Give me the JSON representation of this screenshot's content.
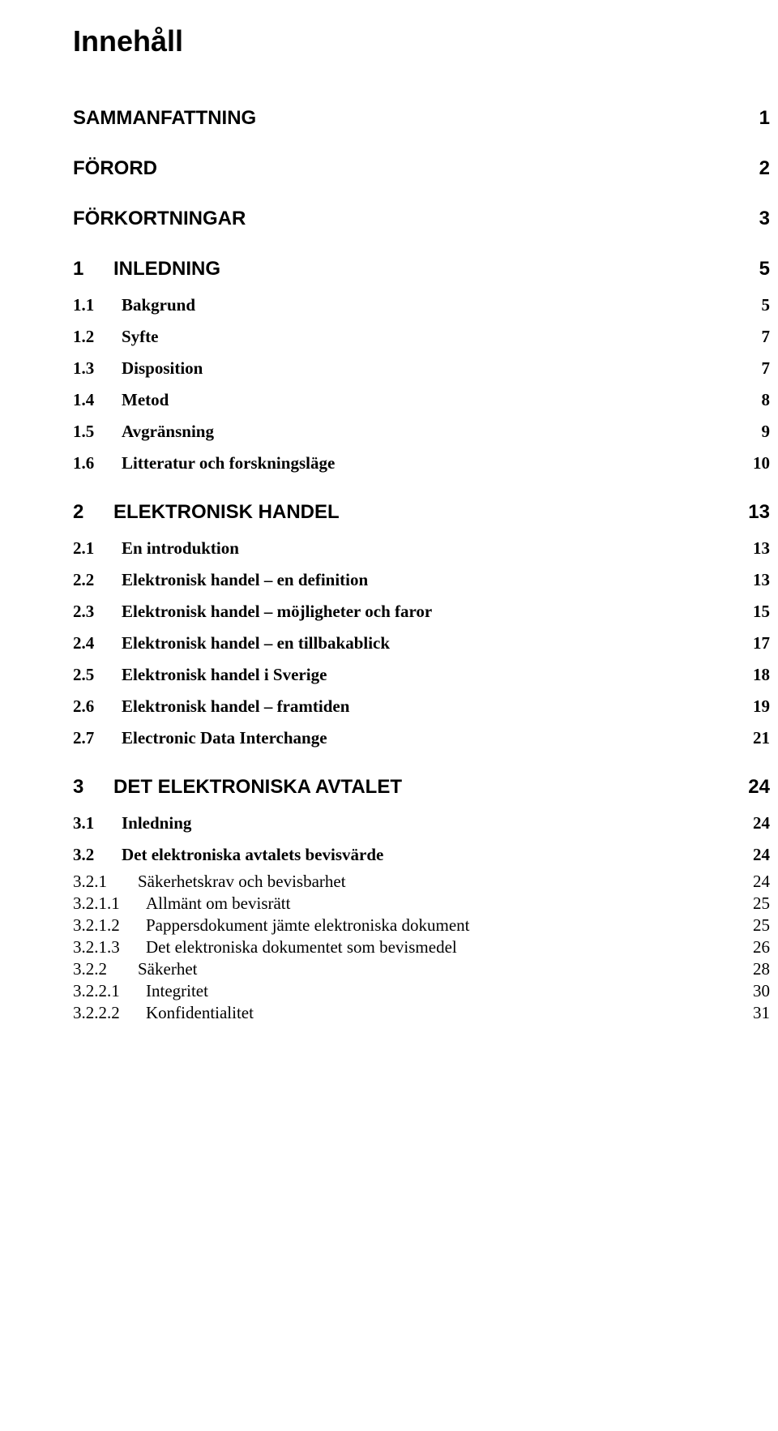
{
  "title": "Innehåll",
  "entries": [
    {
      "level": "a",
      "num": "",
      "label": "SAMMANFATTNING",
      "page": "1",
      "first": true
    },
    {
      "level": "a",
      "num": "",
      "label": "FÖRORD",
      "page": "2"
    },
    {
      "level": "a",
      "num": "",
      "label": "FÖRKORTNINGAR",
      "page": "3"
    },
    {
      "level": "a",
      "num": "1",
      "label": "INLEDNING",
      "page": "5"
    },
    {
      "level": "b",
      "num": "1.1",
      "label": "Bakgrund",
      "page": "5"
    },
    {
      "level": "b",
      "num": "1.2",
      "label": "Syfte",
      "page": "7"
    },
    {
      "level": "b",
      "num": "1.3",
      "label": "Disposition",
      "page": "7"
    },
    {
      "level": "b",
      "num": "1.4",
      "label": "Metod",
      "page": "8"
    },
    {
      "level": "b",
      "num": "1.5",
      "label": "Avgränsning",
      "page": "9"
    },
    {
      "level": "b",
      "num": "1.6",
      "label": "Litteratur och forskningsläge",
      "page": "10"
    },
    {
      "level": "a",
      "num": "2",
      "label": "ELEKTRONISK HANDEL",
      "page": "13"
    },
    {
      "level": "b",
      "num": "2.1",
      "label": "En introduktion",
      "page": "13"
    },
    {
      "level": "b",
      "num": "2.2",
      "label": "Elektronisk handel – en definition",
      "page": "13"
    },
    {
      "level": "b",
      "num": "2.3",
      "label": "Elektronisk handel – möjligheter och faror",
      "page": "15"
    },
    {
      "level": "b",
      "num": "2.4",
      "label": "Elektronisk handel – en tillbakablick",
      "page": "17"
    },
    {
      "level": "b",
      "num": "2.5",
      "label": "Elektronisk handel i Sverige",
      "page": "18"
    },
    {
      "level": "b",
      "num": "2.6",
      "label": "Elektronisk handel – framtiden",
      "page": "19"
    },
    {
      "level": "b",
      "num": "2.7",
      "label": "Electronic Data Interchange",
      "page": "21"
    },
    {
      "level": "a",
      "num": "3",
      "label": "DET ELEKTRONISKA AVTALET",
      "page": "24"
    },
    {
      "level": "b",
      "num": "3.1",
      "label": "Inledning",
      "page": "24"
    },
    {
      "level": "b",
      "num": "3.2",
      "label": "Det elektroniska avtalets bevisvärde",
      "page": "24"
    },
    {
      "level": "c",
      "num": "3.2.1",
      "label": "Säkerhetskrav och bevisbarhet",
      "page": "24"
    },
    {
      "level": "d",
      "num": "3.2.1.1",
      "label": "Allmänt om bevisrätt",
      "page": "25"
    },
    {
      "level": "d",
      "num": "3.2.1.2",
      "label": "Pappersdokument jämte elektroniska dokument",
      "page": "25"
    },
    {
      "level": "d",
      "num": "3.2.1.3",
      "label": "Det elektroniska dokumentet som bevismedel",
      "page": "26"
    },
    {
      "level": "c",
      "num": "3.2.2",
      "label": "Säkerhet",
      "page": "28"
    },
    {
      "level": "d",
      "num": "3.2.2.1",
      "label": "Integritet",
      "page": "30"
    },
    {
      "level": "d",
      "num": "3.2.2.2",
      "label": "Konfidentialitet",
      "page": "31"
    }
  ]
}
